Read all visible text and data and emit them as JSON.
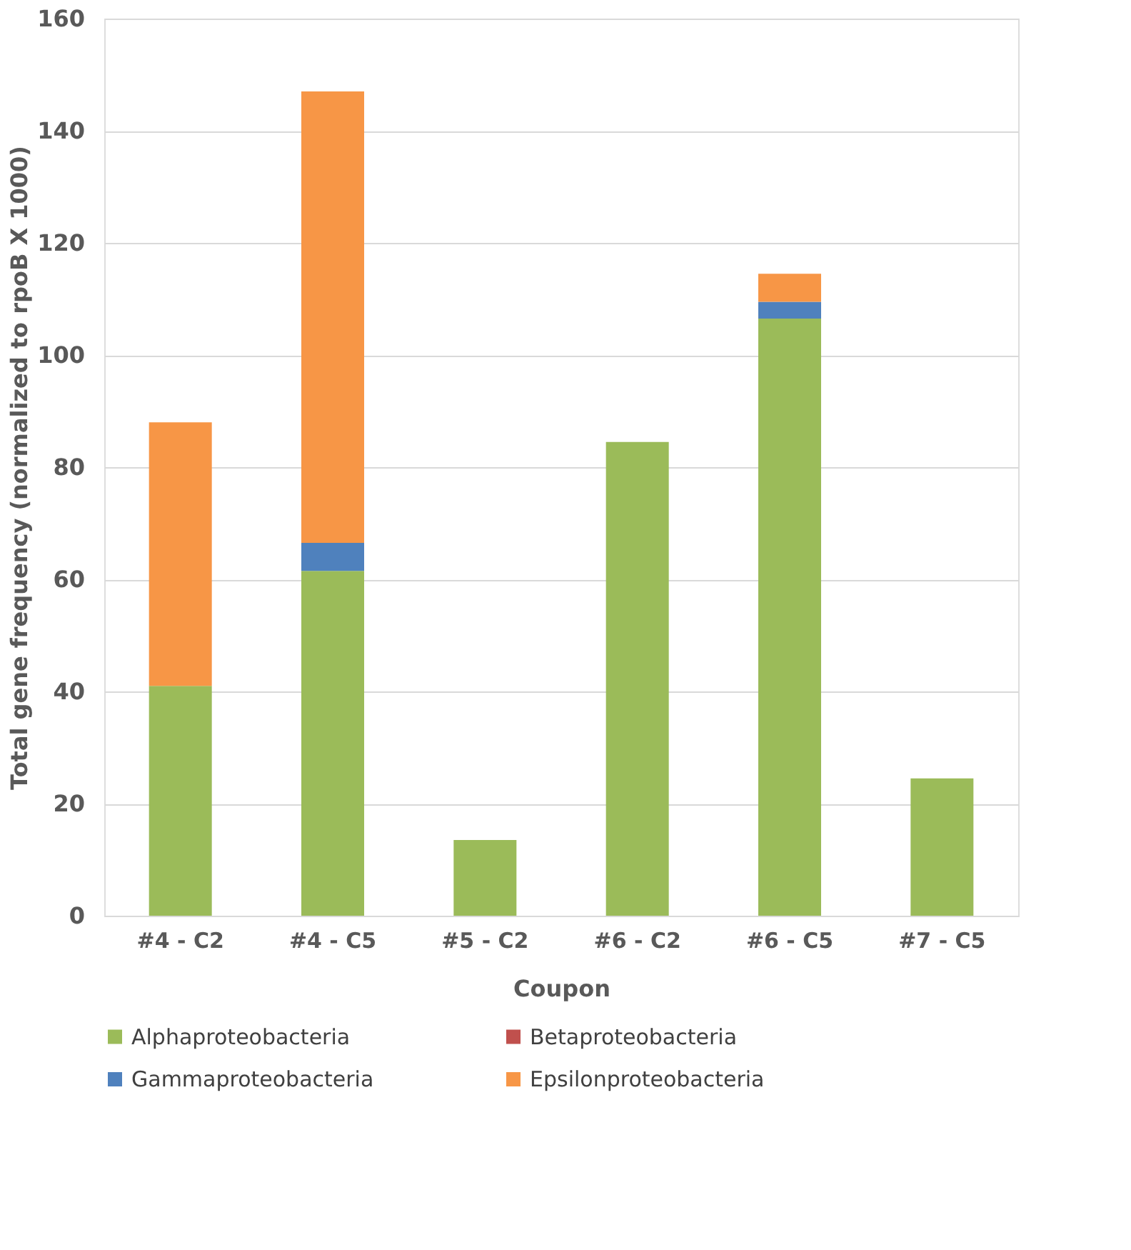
{
  "chart_data": {
    "type": "bar",
    "stacked": true,
    "xlabel": "Coupon",
    "ylabel": "Total gene frequency (normalized to rpoB X 1000)",
    "categories": [
      "#4 - C2",
      "#4 - C5",
      "#5 - C2",
      "#6 - C2",
      "#6 - C5",
      "#7 - C5"
    ],
    "series": [
      {
        "name": "Alphaproteobacteria",
        "color": "#9bbb59",
        "values": [
          41,
          61.5,
          13.5,
          84.5,
          106.5,
          24.5
        ]
      },
      {
        "name": "Betaproteobacteria",
        "color": "#c0504d",
        "values": [
          0,
          0,
          0,
          0,
          0,
          0
        ]
      },
      {
        "name": "Gammaproteobacteria",
        "color": "#4f81bd",
        "values": [
          0,
          5,
          0,
          0,
          3,
          0
        ]
      },
      {
        "name": "Epsilonproteobacteria",
        "color": "#f79646",
        "values": [
          47,
          80.5,
          0,
          0,
          5,
          0
        ]
      }
    ],
    "ylim": [
      0,
      160
    ],
    "yticks": [
      0,
      20,
      40,
      60,
      80,
      100,
      120,
      140,
      160
    ],
    "grid": "y",
    "legend": "bottom"
  }
}
